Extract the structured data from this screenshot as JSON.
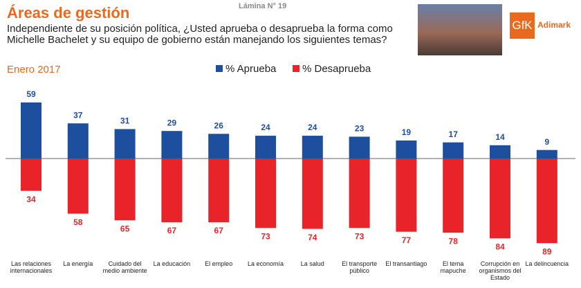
{
  "chart_data": {
    "type": "bar",
    "diverging": true,
    "header_label": "Lámina N° 19",
    "title": "Áreas de gestión",
    "subtitle": "Independiente de su posición política, ¿Usted aprueba o desaprueba la forma como Michelle Bachelet y su equipo de gobierno están manejando los siguientes temas?",
    "date_label": "Enero 2017",
    "logo": {
      "brand": "GfK",
      "name": "Adimark"
    },
    "categories": [
      "Las relaciones internacionales",
      "La energía",
      "Cuidado del medio ambiente",
      "La educación",
      "El empleo",
      "La economía",
      "La salud",
      "El transporte público",
      "El transantiago",
      "El tema mapuche",
      "Corrupción en organismos del Estado",
      "La delincuencia"
    ],
    "series": [
      {
        "name": "% Aprueba",
        "color": "#1d4f9e",
        "values": [
          59,
          37,
          31,
          29,
          26,
          24,
          24,
          23,
          19,
          17,
          14,
          9
        ]
      },
      {
        "name": "% Desaprueba",
        "color": "#e8242a",
        "values": [
          34,
          58,
          65,
          67,
          67,
          73,
          74,
          73,
          77,
          78,
          84,
          89
        ]
      }
    ]
  }
}
